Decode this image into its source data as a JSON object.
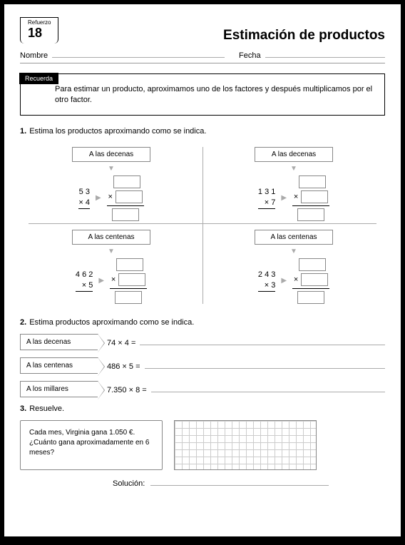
{
  "header": {
    "tabSmall": "Refuerzo",
    "tabNum": "18",
    "title": "Estimación de productos"
  },
  "nameDate": {
    "name": "Nombre",
    "date": "Fecha"
  },
  "recuerda": {
    "label": "Recuerda",
    "text": "Para estimar un producto, aproximamos uno de los factores y después multiplicamos por el otro factor."
  },
  "q1": {
    "num": "1.",
    "text": "Estima los productos aproximando como se indica.",
    "items": [
      {
        "label": "A las decenas",
        "top": "5 3",
        "bot": "×    4"
      },
      {
        "label": "A las decenas",
        "top": "1 3 1",
        "bot": "×    7"
      },
      {
        "label": "A las centenas",
        "top": "4 6 2",
        "bot": "×      5"
      },
      {
        "label": "A las centenas",
        "top": "2 4 3",
        "bot": "×      3"
      }
    ]
  },
  "q2": {
    "num": "2.",
    "text": "Estima productos aproximando como se indica.",
    "items": [
      {
        "label": "A las decenas",
        "expr": "74 × 4 ="
      },
      {
        "label": "A las centenas",
        "expr": "486 × 5 ="
      },
      {
        "label": "A los millares",
        "expr": "7.350 × 8 ="
      }
    ]
  },
  "q3": {
    "num": "3.",
    "text": "Resuelve.",
    "box": "Cada mes, Virginia gana 1.050 €. ¿Cuánto gana aproximadamente en 6 meses?",
    "sol": "Solución:"
  }
}
